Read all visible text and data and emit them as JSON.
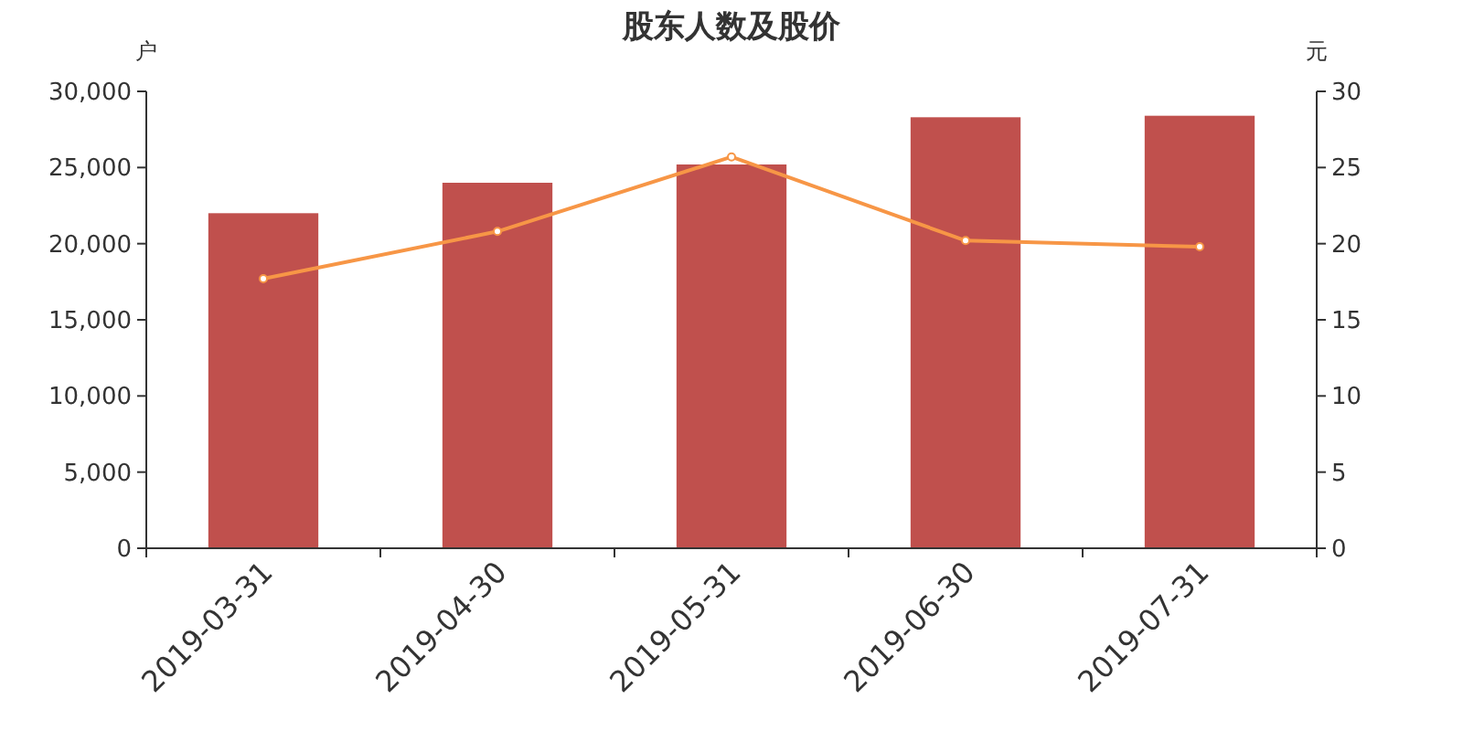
{
  "chart_data": {
    "type": "bar",
    "title": "股东人数及股价",
    "ylabel": "户",
    "y2label": "元",
    "categories": [
      "2019-03-31",
      "2019-04-30",
      "2019-05-31",
      "2019-06-30",
      "2019-07-31"
    ],
    "series": [
      {
        "color": "#c0504d",
        "values": [
          22000,
          24000,
          25200,
          28300,
          28400
        ]
      },
      {
        "type": "line",
        "axis": "y2",
        "color": "#f79646",
        "values": [
          17.7,
          20.8,
          25.7,
          20.2,
          19.8
        ]
      }
    ],
    "ylim": [
      0,
      30000
    ],
    "yticks": [
      {
        "value": 0,
        "label": "0"
      },
      {
        "value": 5000,
        "label": "5,000"
      },
      {
        "value": 10000,
        "label": "10,000"
      },
      {
        "value": 15000,
        "label": "15,000"
      },
      {
        "value": 20000,
        "label": "20,000"
      },
      {
        "value": 25000,
        "label": "25,000"
      },
      {
        "value": 30000,
        "label": "30,000"
      }
    ],
    "y2lim": [
      0,
      30
    ],
    "y2ticks": [
      0,
      5,
      10,
      15,
      20,
      25,
      30
    ],
    "grid": false,
    "marker": "circle",
    "line_style": "solid"
  }
}
